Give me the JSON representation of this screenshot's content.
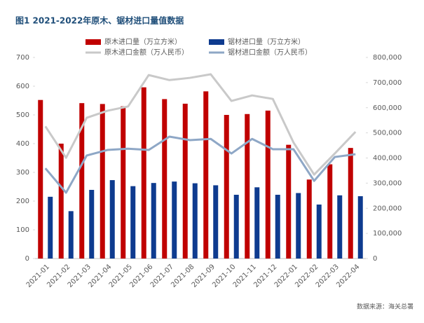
{
  "chart_data": {
    "type": "combo",
    "title": "图1   2021-2022年原木、锯材进口量值数据",
    "source": "数据来源：海关总署",
    "categories": [
      "2021-01",
      "2021-02",
      "2021-03",
      "2021-04",
      "2021-05",
      "2021-06",
      "2021-07",
      "2021-08",
      "2021-09",
      "2021-10",
      "2021-11",
      "2021-12",
      "2022-01",
      "2022-02",
      "2022-03",
      "2022-04"
    ],
    "ylim": [
      0,
      700
    ],
    "yticks": [
      0,
      100,
      200,
      300,
      400,
      500,
      600,
      700
    ],
    "y2lim": [
      0,
      800000
    ],
    "y2ticks": [
      0,
      {
        "value": 100000,
        "label": "100,000"
      },
      {
        "value": 200000,
        "label": "200,000"
      },
      {
        "value": 300000,
        "label": "300,000"
      },
      {
        "value": 400000,
        "label": "400,000"
      },
      {
        "value": 500000,
        "label": "500,000"
      },
      {
        "value": 600000,
        "label": "600,000"
      },
      {
        "value": 700000,
        "label": "700,000"
      },
      {
        "value": 800000,
        "label": "800,000"
      }
    ],
    "series": [
      {
        "name": "原木进口量（万立方米）",
        "type": "bar",
        "color": "#c00000",
        "values": [
          552,
          400,
          541,
          538,
          530,
          596,
          555,
          539,
          582,
          500,
          503,
          515,
          396,
          275,
          328,
          385
        ]
      },
      {
        "name": "锯材进口量（万立方米）",
        "type": "bar",
        "color": "#0e3b8f",
        "values": [
          215,
          165,
          239,
          273,
          252,
          263,
          268,
          262,
          255,
          222,
          248,
          222,
          228,
          188,
          220,
          217
        ]
      },
      {
        "name": "原木进口金额（万人民币）",
        "type": "line",
        "axis": "y2",
        "color": "#c9c9c9",
        "values": [
          526000,
          401000,
          560000,
          588000,
          605000,
          730000,
          710000,
          719000,
          733000,
          627000,
          649000,
          635000,
          462000,
          334000,
          418000,
          504000
        ]
      },
      {
        "name": "锯材进口金额（万人民币）",
        "type": "line",
        "axis": "y2",
        "color": "#8ea7c6",
        "values": [
          359000,
          262000,
          410000,
          432000,
          437000,
          432000,
          485000,
          471000,
          476000,
          418000,
          476000,
          435000,
          435000,
          309000,
          404000,
          415000
        ]
      }
    ]
  }
}
